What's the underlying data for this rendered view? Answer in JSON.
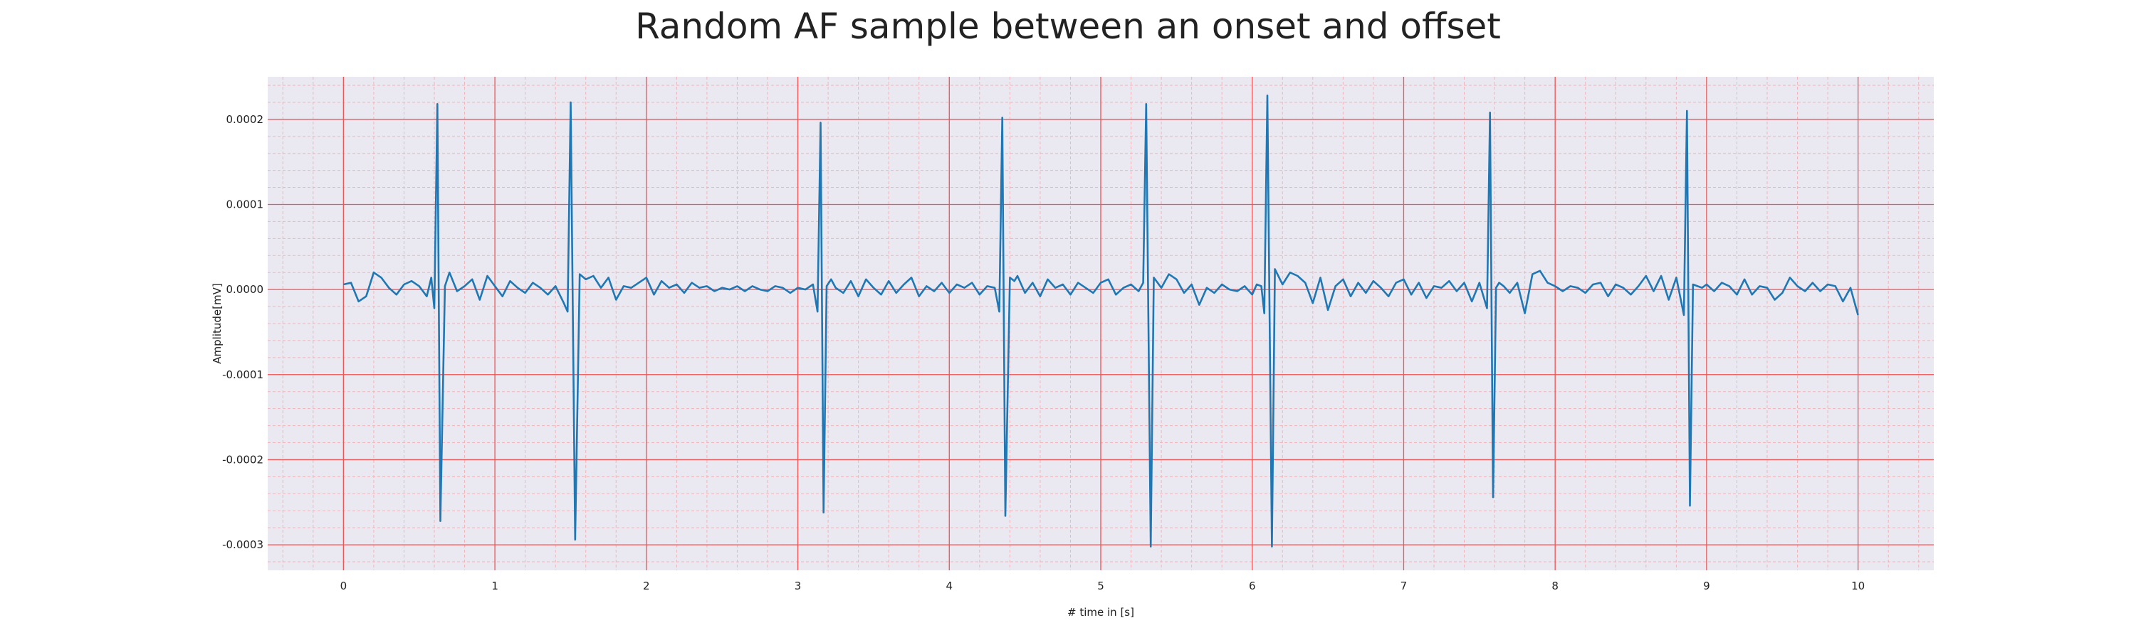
{
  "chart_data": {
    "type": "line",
    "title": "Random AF sample between an onset and offset",
    "xlabel": "# time in [s]",
    "ylabel": "Amplitude[mV]",
    "xlim": [
      -0.5,
      10.5
    ],
    "ylim": [
      -0.00033,
      0.00025
    ],
    "xticks": [
      0,
      1,
      2,
      3,
      4,
      5,
      6,
      7,
      8,
      9,
      10
    ],
    "xtick_labels": [
      "0",
      "1",
      "2",
      "3",
      "4",
      "5",
      "6",
      "7",
      "8",
      "9",
      "10"
    ],
    "yticks": [
      0.0002,
      0.0001,
      0.0,
      -0.0001,
      -0.0002,
      -0.0003
    ],
    "ytick_labels": [
      "0.0002",
      "0.0001",
      "0.0000",
      "-0.0001",
      "-0.0002",
      "-0.0003"
    ],
    "grid": "major and minor",
    "colors": {
      "line": "#1f77b4",
      "plot_background": "#eae9f2",
      "major_grid": "#ee5555",
      "minor_grid": "#f2b4b8"
    },
    "series": [
      {
        "x": [
          0.0,
          0.05,
          0.1,
          0.15,
          0.2,
          0.25,
          0.3,
          0.35,
          0.4,
          0.45,
          0.5,
          0.55,
          0.58,
          0.6,
          0.62,
          0.64,
          0.67,
          0.7,
          0.75,
          0.8,
          0.85,
          0.9,
          0.95,
          1.0,
          1.05,
          1.1,
          1.15,
          1.2,
          1.25,
          1.3,
          1.35,
          1.4,
          1.45,
          1.48,
          1.5,
          1.53,
          1.56,
          1.6,
          1.65,
          1.7,
          1.75,
          1.8,
          1.85,
          1.9,
          1.95,
          2.0,
          2.05,
          2.1,
          2.15,
          2.2,
          2.25,
          2.3,
          2.35,
          2.4,
          2.45,
          2.5,
          2.55,
          2.6,
          2.65,
          2.7,
          2.75,
          2.8,
          2.85,
          2.9,
          2.95,
          3.0,
          3.05,
          3.1,
          3.13,
          3.15,
          3.17,
          3.19,
          3.22,
          3.25,
          3.3,
          3.35,
          3.4,
          3.45,
          3.5,
          3.55,
          3.6,
          3.65,
          3.7,
          3.75,
          3.8,
          3.85,
          3.9,
          3.95,
          4.0,
          4.05,
          4.1,
          4.15,
          4.2,
          4.25,
          4.3,
          4.33,
          4.35,
          4.37,
          4.4,
          4.43,
          4.45,
          4.5,
          4.55,
          4.6,
          4.65,
          4.7,
          4.75,
          4.8,
          4.85,
          4.9,
          4.95,
          5.0,
          5.05,
          5.1,
          5.15,
          5.2,
          5.25,
          5.28,
          5.3,
          5.33,
          5.35,
          5.4,
          5.45,
          5.5,
          5.55,
          5.6,
          5.65,
          5.7,
          5.75,
          5.8,
          5.85,
          5.9,
          5.95,
          6.0,
          6.03,
          6.06,
          6.08,
          6.1,
          6.13,
          6.15,
          6.2,
          6.25,
          6.3,
          6.35,
          6.4,
          6.45,
          6.5,
          6.55,
          6.6,
          6.65,
          6.7,
          6.75,
          6.8,
          6.85,
          6.9,
          6.95,
          7.0,
          7.05,
          7.1,
          7.15,
          7.2,
          7.25,
          7.3,
          7.35,
          7.4,
          7.45,
          7.5,
          7.55,
          7.57,
          7.59,
          7.61,
          7.63,
          7.66,
          7.7,
          7.75,
          7.8,
          7.85,
          7.9,
          7.95,
          8.0,
          8.05,
          8.1,
          8.15,
          8.2,
          8.25,
          8.3,
          8.35,
          8.4,
          8.45,
          8.5,
          8.55,
          8.6,
          8.65,
          8.7,
          8.75,
          8.8,
          8.85,
          8.87,
          8.89,
          8.91,
          8.94,
          8.97,
          9.0,
          9.05,
          9.1,
          9.15,
          9.2,
          9.25,
          9.3,
          9.35,
          9.4,
          9.45,
          9.5,
          9.55,
          9.6,
          9.65,
          9.7,
          9.75,
          9.8,
          9.85,
          9.9,
          9.95,
          10.0
        ],
        "values": [
          6e-06,
          8e-06,
          -1.4e-05,
          -8e-06,
          2e-05,
          1.4e-05,
          2e-06,
          -6e-06,
          6e-06,
          1e-05,
          4e-06,
          -8e-06,
          1.4e-05,
          -2.2e-05,
          0.000218,
          -0.000272,
          4e-06,
          2e-05,
          -2e-06,
          4e-06,
          1.2e-05,
          -1.2e-05,
          1.6e-05,
          4e-06,
          -8e-06,
          1e-05,
          2e-06,
          -4e-06,
          8e-06,
          2e-06,
          -6e-06,
          4e-06,
          -1.4e-05,
          -2.6e-05,
          0.00022,
          -0.000294,
          1.8e-05,
          1.2e-05,
          1.6e-05,
          2e-06,
          1.4e-05,
          -1.2e-05,
          4e-06,
          2e-06,
          8e-06,
          1.4e-05,
          -6e-06,
          1e-05,
          2e-06,
          6e-06,
          -4e-06,
          8e-06,
          2e-06,
          4e-06,
          -2e-06,
          2e-06,
          0.0,
          4e-06,
          -2e-06,
          4e-06,
          0.0,
          -2e-06,
          4e-06,
          2e-06,
          -4e-06,
          2e-06,
          0.0,
          6e-06,
          -2.6e-05,
          0.000196,
          -0.000262,
          4e-06,
          1.2e-05,
          2e-06,
          -4e-06,
          1e-05,
          -8e-06,
          1.2e-05,
          2e-06,
          -6e-06,
          1e-05,
          -4e-06,
          6e-06,
          1.4e-05,
          -8e-06,
          4e-06,
          -2e-06,
          8e-06,
          -4e-06,
          6e-06,
          2e-06,
          8e-06,
          -6e-06,
          4e-06,
          2e-06,
          -2.6e-05,
          0.000202,
          -0.000266,
          1.4e-05,
          1e-05,
          1.6e-05,
          -4e-06,
          8e-06,
          -8e-06,
          1.2e-05,
          2e-06,
          6e-06,
          -6e-06,
          8e-06,
          2e-06,
          -4e-06,
          8e-06,
          1.2e-05,
          -6e-06,
          2e-06,
          6e-06,
          -2e-06,
          8e-06,
          0.000218,
          -0.000302,
          1.4e-05,
          2e-06,
          1.8e-05,
          1.2e-05,
          -4e-06,
          6e-06,
          -1.8e-05,
          2e-06,
          -4e-06,
          6e-06,
          0.0,
          -2e-06,
          4e-06,
          -6e-06,
          6e-06,
          4e-06,
          -2.8e-05,
          0.000228,
          -0.000302,
          2.4e-05,
          6e-06,
          2e-05,
          1.6e-05,
          8e-06,
          -1.6e-05,
          1.4e-05,
          -2.4e-05,
          4e-06,
          1.2e-05,
          -8e-06,
          8e-06,
          -4e-06,
          1e-05,
          2e-06,
          -8e-06,
          8e-06,
          1.2e-05,
          -6e-06,
          8e-06,
          -1e-05,
          4e-06,
          2e-06,
          1e-05,
          -2e-06,
          8e-06,
          -1.4e-05,
          8e-06,
          -2.2e-05,
          0.000208,
          -0.000244,
          2e-06,
          8e-06,
          4e-06,
          -4e-06,
          8e-06,
          -2.8e-05,
          1.8e-05,
          2.2e-05,
          8e-06,
          4e-06,
          -2e-06,
          4e-06,
          2e-06,
          -4e-06,
          6e-06,
          8e-06,
          -8e-06,
          6e-06,
          2e-06,
          -6e-06,
          4e-06,
          1.6e-05,
          -2e-06,
          1.6e-05,
          -1.2e-05,
          1.4e-05,
          -3e-05,
          0.00021,
          -0.000254,
          6e-06,
          4e-06,
          2e-06,
          6e-06,
          -2e-06,
          8e-06,
          4e-06,
          -6e-06,
          1.2e-05,
          -6e-06,
          4e-06,
          2e-06,
          -1.2e-05,
          -4e-06,
          1.4e-05,
          4e-06,
          -2e-06,
          8e-06,
          -2e-06,
          6e-06,
          4e-06,
          -1.4e-05,
          2e-06,
          -3e-05
        ]
      }
    ]
  }
}
